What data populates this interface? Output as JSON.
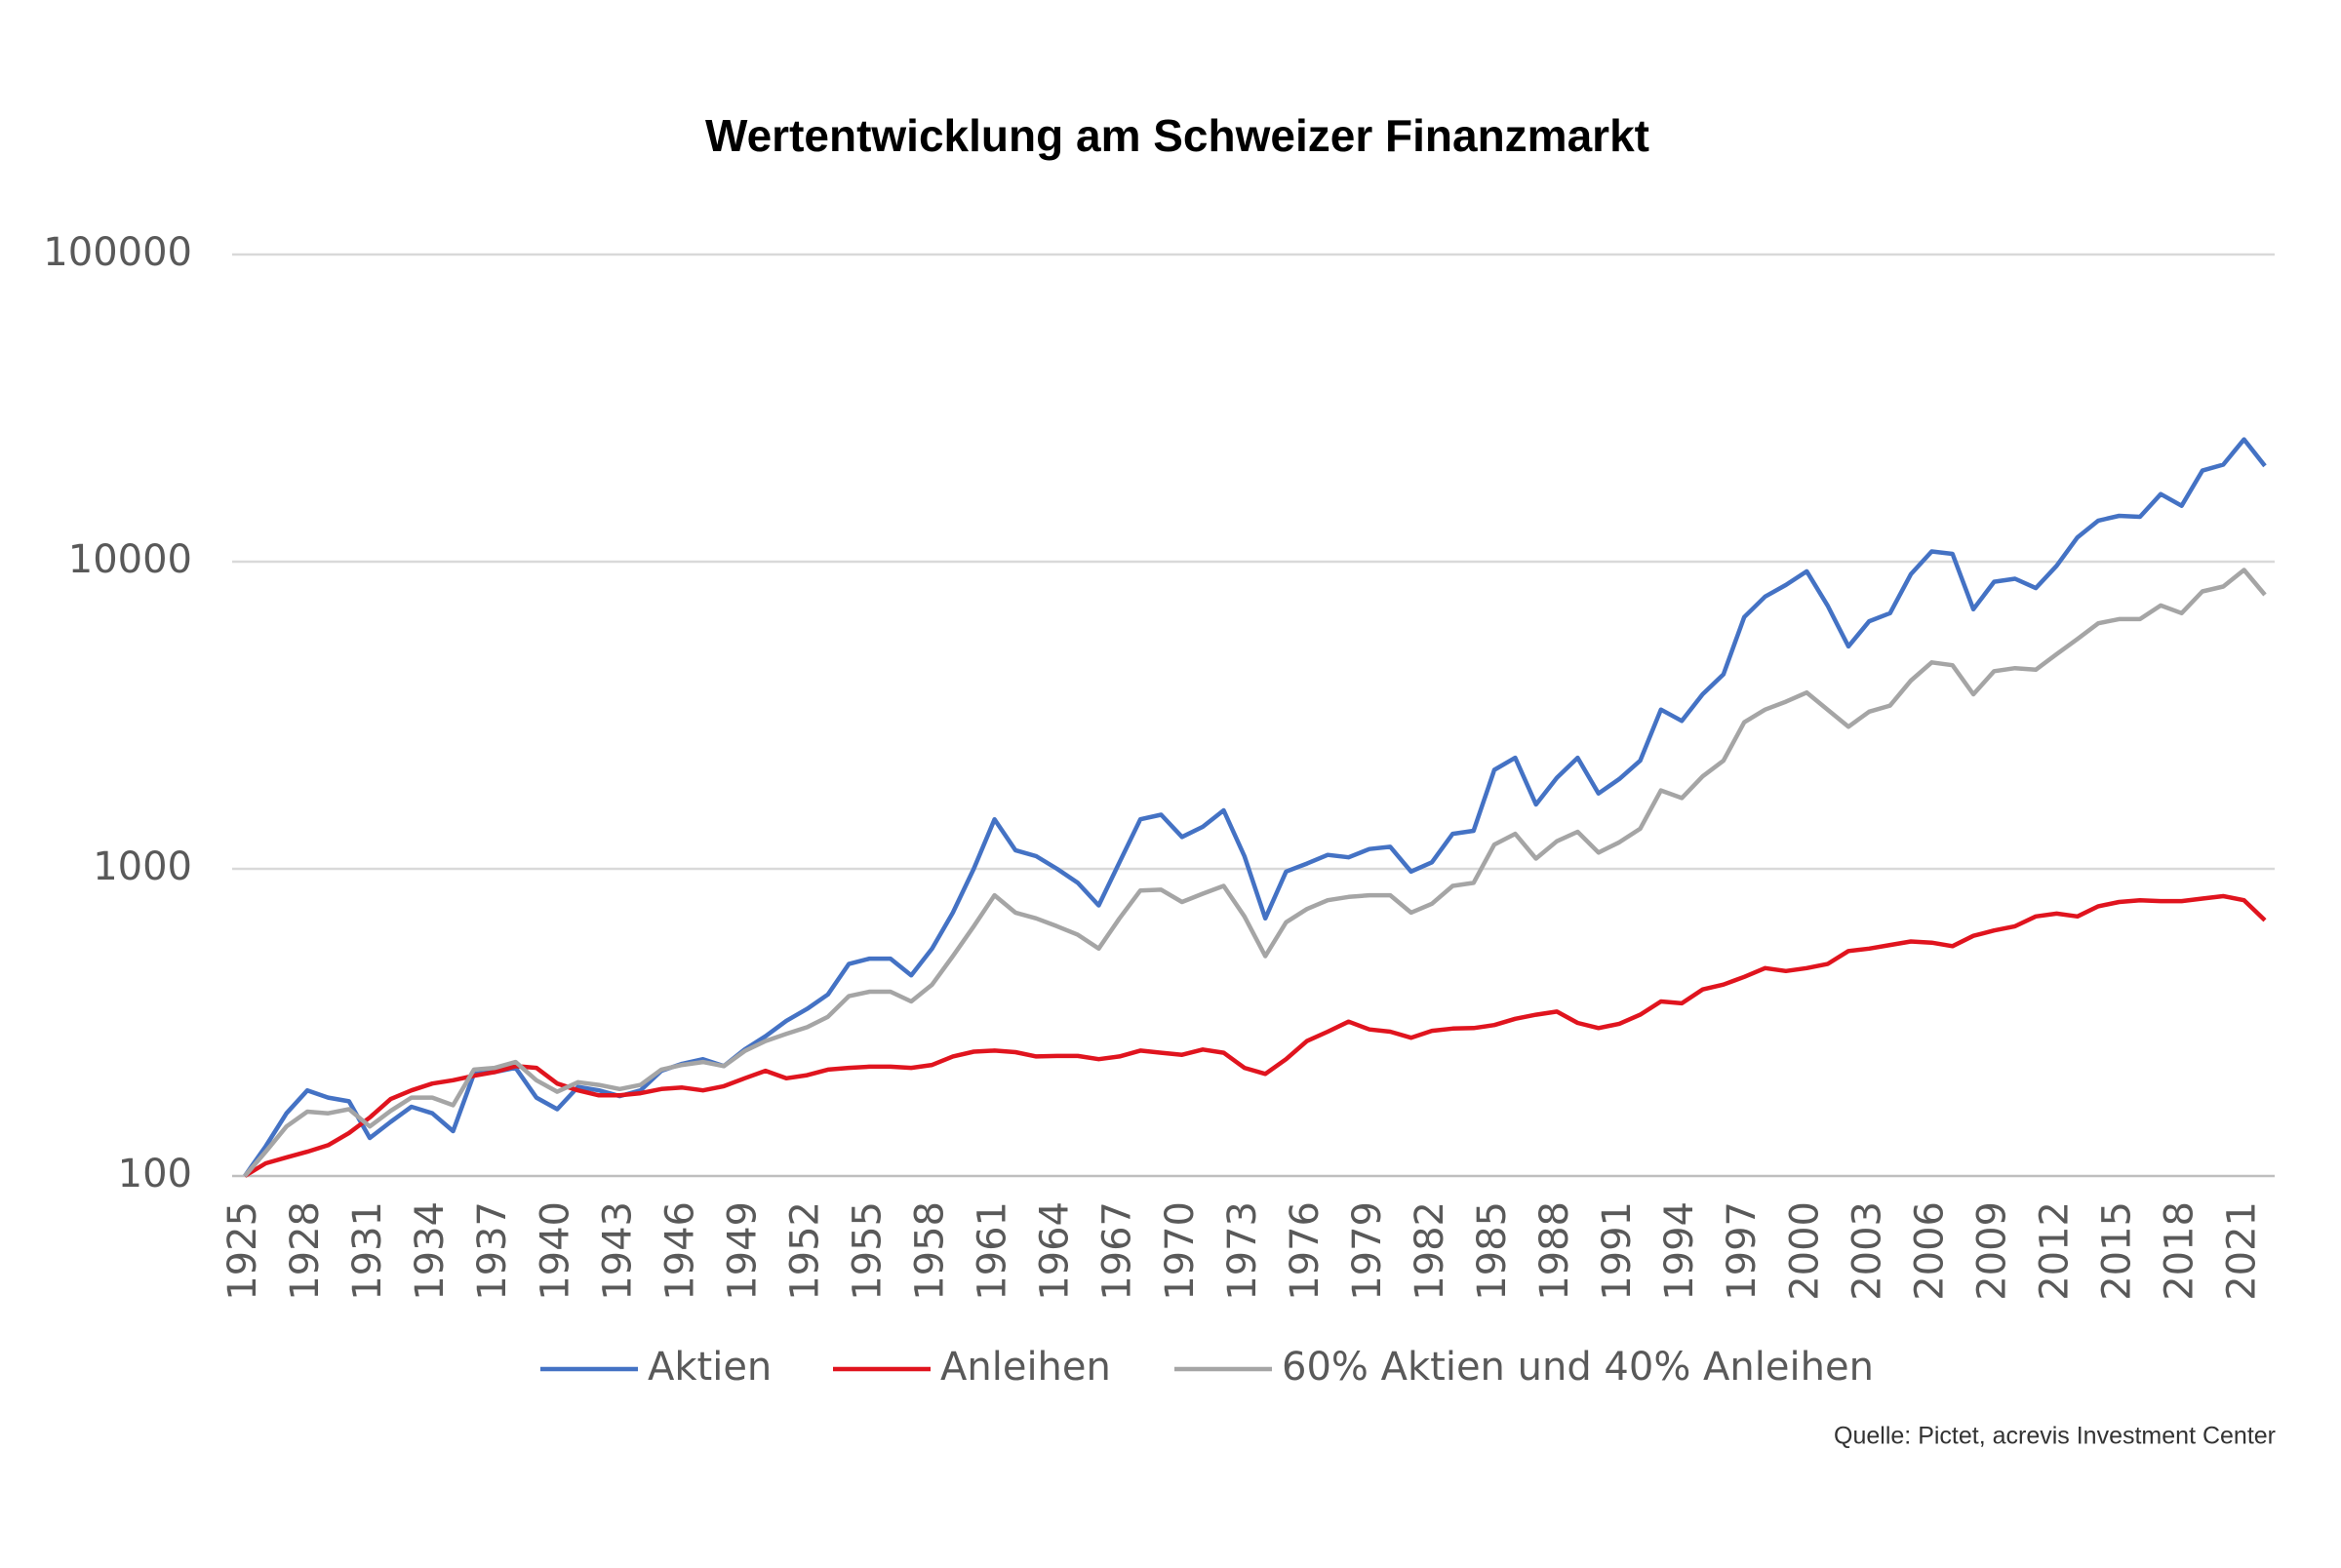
{
  "chart_data": {
    "type": "line",
    "title": "Wertentwicklung am Schweizer Finanzmarkt",
    "source": "Quelle: Pictet, acrevis Investment Center",
    "yscale": "log",
    "grid": true,
    "legend": "bottom",
    "xlim": [
      1925,
      2022
    ],
    "xticks": [
      1925,
      1928,
      1931,
      1934,
      1937,
      1940,
      1943,
      1946,
      1949,
      1952,
      1955,
      1958,
      1961,
      1964,
      1967,
      1970,
      1973,
      1976,
      1979,
      1982,
      1985,
      1988,
      1991,
      1994,
      1997,
      2000,
      2003,
      2006,
      2009,
      2012,
      2015,
      2018,
      2021
    ],
    "ylim": [
      100,
      100000
    ],
    "yticks": [
      100,
      1000,
      10000,
      100000
    ],
    "x": [
      1925,
      1926,
      1927,
      1928,
      1929,
      1930,
      1931,
      1932,
      1933,
      1934,
      1935,
      1936,
      1937,
      1938,
      1939,
      1940,
      1941,
      1942,
      1943,
      1944,
      1945,
      1946,
      1947,
      1948,
      1949,
      1950,
      1951,
      1952,
      1953,
      1954,
      1955,
      1956,
      1957,
      1958,
      1959,
      1960,
      1961,
      1962,
      1963,
      1964,
      1965,
      1966,
      1967,
      1968,
      1969,
      1970,
      1971,
      1972,
      1973,
      1974,
      1975,
      1976,
      1977,
      1978,
      1979,
      1980,
      1981,
      1982,
      1983,
      1984,
      1985,
      1986,
      1987,
      1988,
      1989,
      1990,
      1991,
      1992,
      1993,
      1994,
      1995,
      1996,
      1997,
      1998,
      1999,
      2000,
      2001,
      2002,
      2003,
      2004,
      2005,
      2006,
      2007,
      2008,
      2009,
      2010,
      2011,
      2012,
      2013,
      2014,
      2015,
      2016,
      2017,
      2018,
      2019,
      2020,
      2021,
      2022
    ],
    "series": [
      {
        "name": "Aktien",
        "color": "#4472c4",
        "values": [
          100,
          125,
          160,
          190,
          180,
          175,
          133,
          150,
          168,
          160,
          140,
          215,
          218,
          225,
          180,
          165,
          195,
          190,
          182,
          190,
          220,
          232,
          240,
          228,
          258,
          285,
          320,
          350,
          390,
          490,
          510,
          510,
          450,
          550,
          720,
          1000,
          1450,
          1150,
          1100,
          1000,
          900,
          760,
          1050,
          1450,
          1500,
          1270,
          1370,
          1550,
          1100,
          690,
          980,
          1040,
          1110,
          1090,
          1160,
          1180,
          980,
          1050,
          1300,
          1330,
          2100,
          2300,
          1620,
          1980,
          2300,
          1760,
          1960,
          2250,
          3300,
          3030,
          3700,
          4300,
          6600,
          7700,
          8400,
          9300,
          7200,
          5300,
          6400,
          6800,
          9100,
          10800,
          10600,
          7000,
          8600,
          8800,
          8200,
          9700,
          12000,
          13600,
          14100,
          14000,
          16600,
          15200,
          19800,
          20700,
          25000,
          20500
        ]
      },
      {
        "name": "Anleihen",
        "color": "#e0141e",
        "values": [
          100,
          110,
          115,
          120,
          126,
          138,
          155,
          178,
          190,
          200,
          205,
          212,
          218,
          228,
          225,
          200,
          190,
          183,
          183,
          186,
          192,
          194,
          190,
          196,
          208,
          220,
          208,
          213,
          222,
          225,
          227,
          227,
          225,
          230,
          245,
          254,
          256,
          253,
          245,
          246,
          246,
          240,
          245,
          256,
          252,
          248,
          258,
          252,
          225,
          215,
          240,
          275,
          295,
          318,
          300,
          295,
          282,
          297,
          302,
          303,
          310,
          325,
          335,
          343,
          315,
          303,
          313,
          335,
          370,
          365,
          405,
          420,
          445,
          475,
          465,
          475,
          490,
          540,
          550,
          565,
          580,
          575,
          560,
          605,
          630,
          650,
          700,
          715,
          700,
          755,
          780,
          790,
          785,
          785,
          800,
          815,
          790,
          680
        ]
      },
      {
        "name": "60% Aktien und 40% Anleihen",
        "color": "#a5a5a5",
        "values": [
          100,
          120,
          145,
          162,
          160,
          165,
          145,
          163,
          180,
          180,
          170,
          222,
          225,
          235,
          205,
          188,
          202,
          198,
          192,
          198,
          222,
          230,
          235,
          228,
          255,
          275,
          290,
          305,
          330,
          385,
          398,
          398,
          370,
          420,
          520,
          650,
          820,
          720,
          690,
          650,
          610,
          550,
          690,
          850,
          855,
          780,
          830,
          880,
          700,
          520,
          670,
          740,
          790,
          810,
          820,
          820,
          720,
          770,
          880,
          900,
          1200,
          1300,
          1080,
          1230,
          1320,
          1130,
          1220,
          1350,
          1800,
          1700,
          2000,
          2250,
          3000,
          3300,
          3500,
          3750,
          3300,
          2900,
          3250,
          3400,
          4100,
          4700,
          4600,
          3700,
          4400,
          4500,
          4450,
          5000,
          5600,
          6300,
          6500,
          6500,
          7200,
          6800,
          8000,
          8300,
          9400,
          7800
        ]
      }
    ]
  }
}
